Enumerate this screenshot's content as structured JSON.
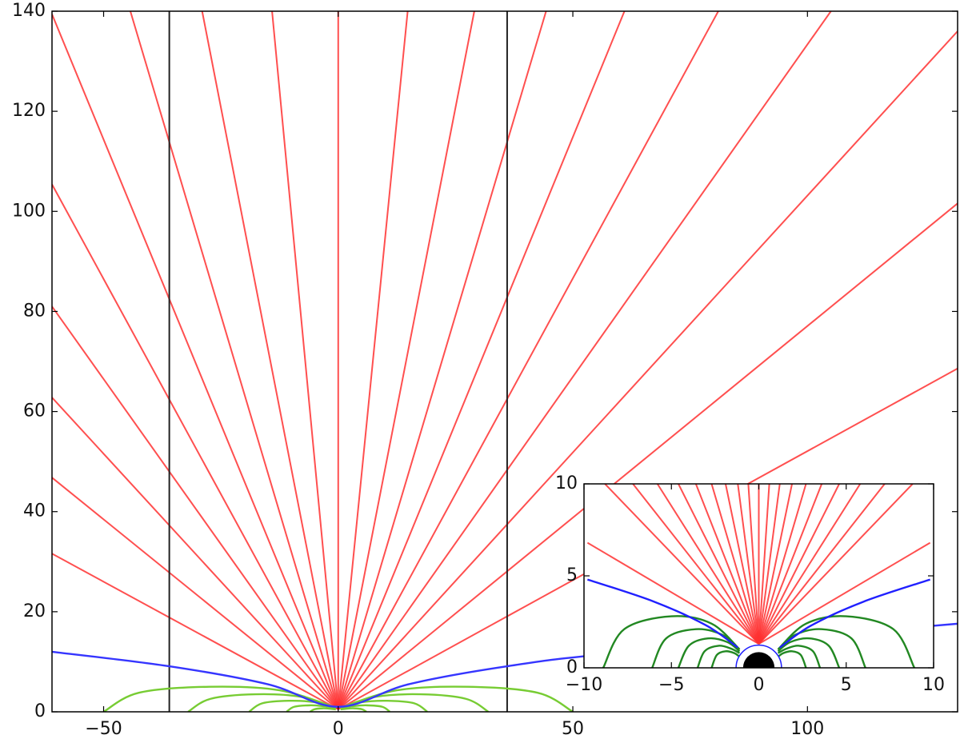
{
  "chart_data": [
    {
      "type": "line",
      "xlim": [
        -61,
        132
      ],
      "ylim": [
        0,
        140
      ],
      "xticks": [
        {
          "value": -50,
          "label": "−50"
        },
        0,
        50,
        100
      ],
      "yticks": [
        0,
        20,
        40,
        60,
        80,
        100,
        120,
        140
      ],
      "red_lines": {
        "color": "#ff3030",
        "x0": 0,
        "y0": 0.5,
        "x_end": [
          -61,
          -61,
          -61,
          -61,
          -61,
          -61,
          -44.3,
          -29,
          -14.1,
          0,
          14.8,
          29,
          44.3,
          61,
          81,
          105,
          132,
          132,
          132
        ],
        "y_end": [
          31.6,
          46.8,
          62.8,
          81,
          105.4,
          139.4,
          140,
          140,
          140,
          140,
          140,
          140,
          140,
          140,
          140,
          140,
          136,
          101.6,
          68.6
        ]
      },
      "vlines": {
        "color": "#222222",
        "x": [
          -36,
          36
        ]
      },
      "blue_line": {
        "color": "#3535ff",
        "x": [
          -61,
          -36,
          -15,
          0,
          15,
          36,
          60,
          132
        ],
        "y": [
          12,
          9.1,
          5.5,
          1,
          5.5,
          9.1,
          11.8,
          17.6
        ]
      },
      "green_lines": {
        "color": "#77cc33",
        "lines": [
          {
            "x": [
              0.5,
              12.5,
              27.5,
              42.5,
              50
            ],
            "y": [
              0.8,
              4.3,
              5,
              3.8,
              0
            ]
          },
          {
            "x": [
              0.5,
              8,
              17.6,
              27.2,
              32
            ],
            "y": [
              0.8,
              3,
              3.5,
              2.6,
              0
            ]
          },
          {
            "x": [
              0.5,
              4.8,
              10.5,
              16.2,
              19
            ],
            "y": [
              0.8,
              1.9,
              2.2,
              1.7,
              0
            ]
          },
          {
            "x": [
              0.5,
              2.8,
              6,
              9.4,
              11
            ],
            "y": [
              0.8,
              1.1,
              1.3,
              1,
              0
            ]
          },
          {
            "x": [
              0.5,
              1.5,
              3.3,
              5.1,
              6
            ],
            "y": [
              0.5,
              0.6,
              0.7,
              0.5,
              0
            ]
          },
          {
            "x": [
              -0.5,
              -12.5,
              -27.5,
              -42.5,
              -50
            ],
            "y": [
              0.8,
              4.3,
              5,
              3.8,
              0
            ]
          },
          {
            "x": [
              -0.5,
              -8,
              -17.6,
              -27.2,
              -32
            ],
            "y": [
              0.8,
              3,
              3.5,
              2.6,
              0
            ]
          },
          {
            "x": [
              -0.5,
              -4.8,
              -10.5,
              -16.2,
              -19
            ],
            "y": [
              0.8,
              1.9,
              2.2,
              1.7,
              0
            ]
          },
          {
            "x": [
              -0.5,
              -2.8,
              -6,
              -9.4,
              -11
            ],
            "y": [
              0.8,
              1.1,
              1.3,
              1,
              0
            ]
          },
          {
            "x": [
              -0.5,
              -1.5,
              -3.3,
              -5.1,
              -6
            ],
            "y": [
              0.5,
              0.6,
              0.7,
              0.5,
              0
            ]
          }
        ]
      }
    },
    {
      "type": "line",
      "xlim": [
        -10,
        10
      ],
      "ylim": [
        0,
        10
      ],
      "xticks": [
        {
          "value": -10,
          "label": "−10"
        },
        {
          "value": -5,
          "label": "−5"
        },
        0,
        5,
        10
      ],
      "yticks": [
        0,
        5,
        10
      ],
      "red_lines": {
        "color": "#ff3030",
        "x0": 0,
        "y0": 1.3,
        "x_end": [
          -9.8,
          -8.8,
          -7.2,
          -5.8,
          -4.6,
          -3.6,
          -2.7,
          -1.9,
          -1.2,
          -0.6,
          0,
          0.6,
          1.2,
          1.9,
          2.7,
          3.6,
          4.6,
          5.8,
          7.2,
          8.8,
          9.8
        ],
        "y_end": [
          6.8,
          10,
          10,
          10,
          10,
          10,
          10,
          10,
          10,
          10,
          10,
          10,
          10,
          10,
          10,
          10,
          10,
          10,
          10,
          10,
          6.8
        ]
      },
      "blue_line": {
        "color": "#2020ff",
        "x": [
          -9.8,
          -6,
          -3,
          -1.2,
          0,
          1.2,
          3,
          6,
          9.8
        ],
        "y": [
          4.8,
          3.6,
          2.3,
          1.1,
          null,
          1.1,
          2.3,
          3.6,
          4.8
        ]
      },
      "green_lines": {
        "color": "#228822",
        "lines": [
          {
            "x": [
              1.1,
              2.7,
              5,
              7.7,
              8.9
            ],
            "y": [
              1,
              2.4,
              2.8,
              2.1,
              0
            ]
          },
          {
            "x": [
              1.1,
              2.1,
              3.6,
              5.3,
              6.1
            ],
            "y": [
              1,
              1.8,
              2.1,
              1.6,
              0
            ]
          },
          {
            "x": [
              1.1,
              1.8,
              2.9,
              4,
              4.6
            ],
            "y": [
              0.9,
              1.4,
              1.6,
              1.2,
              0
            ]
          },
          {
            "x": [
              1.1,
              1.6,
              2.3,
              3.1,
              3.5
            ],
            "y": [
              0.8,
              1.05,
              1.2,
              0.9,
              0
            ]
          },
          {
            "x": [
              1.1,
              1.4,
              1.9,
              2.4,
              2.7
            ],
            "y": [
              0.6,
              0.8,
              0.9,
              0.7,
              0
            ]
          },
          {
            "x": [
              -1.1,
              -2.7,
              -5,
              -7.7,
              -8.9
            ],
            "y": [
              1,
              2.4,
              2.8,
              2.1,
              0
            ]
          },
          {
            "x": [
              -1.1,
              -2.1,
              -3.6,
              -5.3,
              -6.1
            ],
            "y": [
              1,
              1.8,
              2.1,
              1.6,
              0
            ]
          },
          {
            "x": [
              -1.1,
              -1.8,
              -2.9,
              -4,
              -4.6
            ],
            "y": [
              0.9,
              1.4,
              1.6,
              1.2,
              0
            ]
          },
          {
            "x": [
              -1.1,
              -1.6,
              -2.3,
              -3.1,
              -3.5
            ],
            "y": [
              0.8,
              1.05,
              1.2,
              0.9,
              0
            ]
          },
          {
            "x": [
              -1.1,
              -1.4,
              -1.9,
              -2.4,
              -2.7
            ],
            "y": [
              0.6,
              0.8,
              0.9,
              0.7,
              0
            ]
          }
        ]
      },
      "disk": {
        "radius": 0.9,
        "ring_radius": 1.3
      }
    }
  ]
}
